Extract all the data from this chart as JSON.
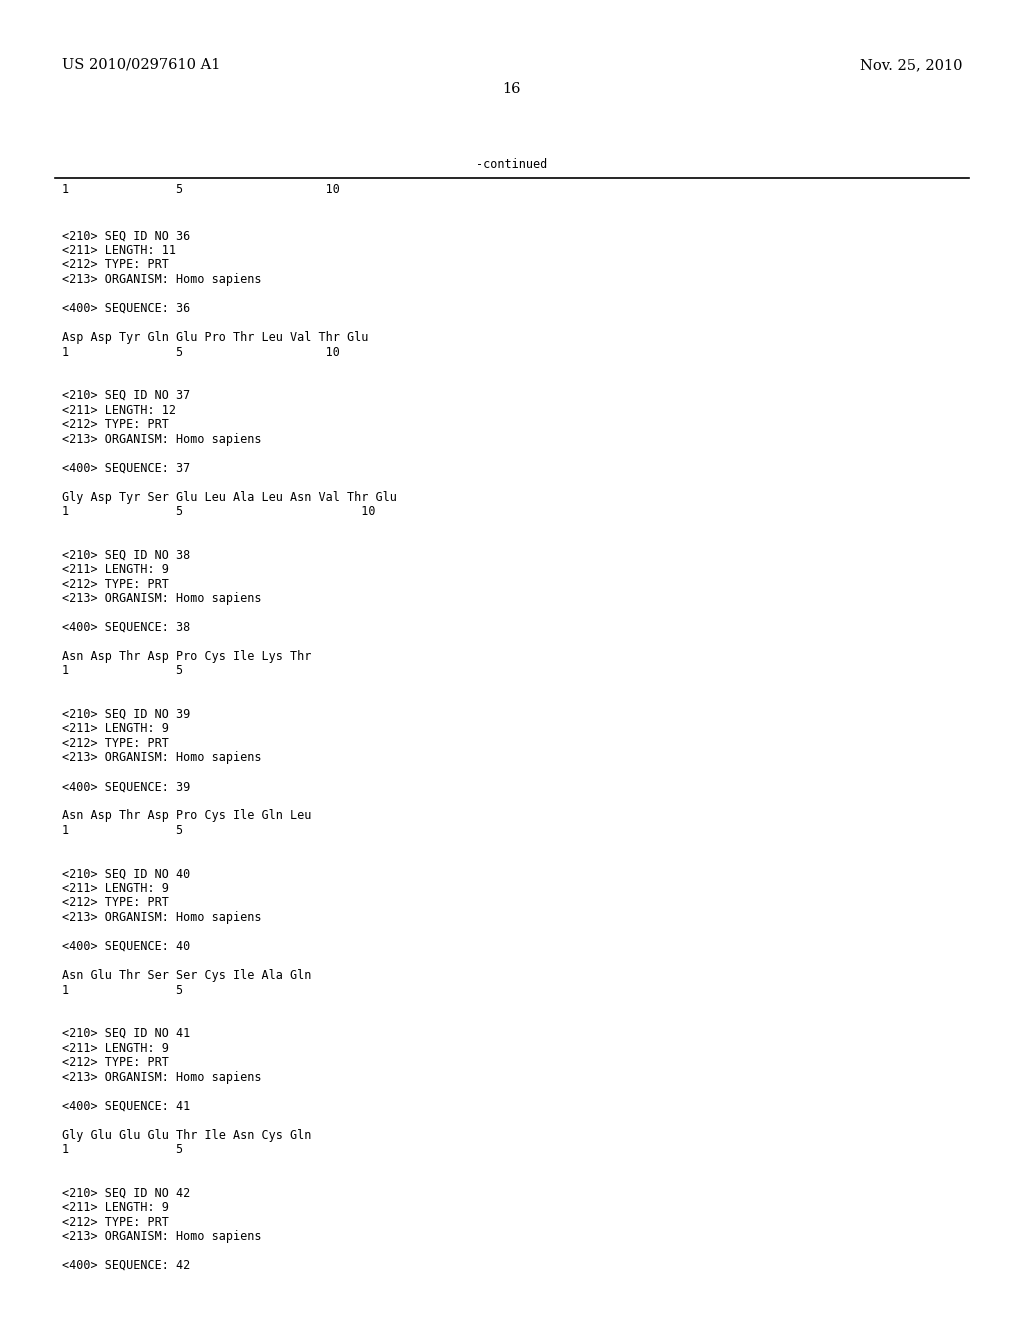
{
  "header_left": "US 2010/0297610 A1",
  "header_right": "Nov. 25, 2010",
  "page_number": "16",
  "continued_label": "-continued",
  "background_color": "#ffffff",
  "text_color": "#000000",
  "font_size_header": 10.5,
  "font_size_body": 8.5,
  "number_line_top": "1               5                    10",
  "content_lines": [
    "",
    "<210> SEQ ID NO 36",
    "<211> LENGTH: 11",
    "<212> TYPE: PRT",
    "<213> ORGANISM: Homo sapiens",
    "",
    "<400> SEQUENCE: 36",
    "",
    "Asp Asp Tyr Gln Glu Pro Thr Leu Val Thr Glu",
    "1               5                    10",
    "",
    "",
    "<210> SEQ ID NO 37",
    "<211> LENGTH: 12",
    "<212> TYPE: PRT",
    "<213> ORGANISM: Homo sapiens",
    "",
    "<400> SEQUENCE: 37",
    "",
    "Gly Asp Tyr Ser Glu Leu Ala Leu Asn Val Thr Glu",
    "1               5                         10",
    "",
    "",
    "<210> SEQ ID NO 38",
    "<211> LENGTH: 9",
    "<212> TYPE: PRT",
    "<213> ORGANISM: Homo sapiens",
    "",
    "<400> SEQUENCE: 38",
    "",
    "Asn Asp Thr Asp Pro Cys Ile Lys Thr",
    "1               5",
    "",
    "",
    "<210> SEQ ID NO 39",
    "<211> LENGTH: 9",
    "<212> TYPE: PRT",
    "<213> ORGANISM: Homo sapiens",
    "",
    "<400> SEQUENCE: 39",
    "",
    "Asn Asp Thr Asp Pro Cys Ile Gln Leu",
    "1               5",
    "",
    "",
    "<210> SEQ ID NO 40",
    "<211> LENGTH: 9",
    "<212> TYPE: PRT",
    "<213> ORGANISM: Homo sapiens",
    "",
    "<400> SEQUENCE: 40",
    "",
    "Asn Glu Thr Ser Ser Cys Ile Ala Gln",
    "1               5",
    "",
    "",
    "<210> SEQ ID NO 41",
    "<211> LENGTH: 9",
    "<212> TYPE: PRT",
    "<213> ORGANISM: Homo sapiens",
    "",
    "<400> SEQUENCE: 41",
    "",
    "Gly Glu Glu Glu Thr Ile Asn Cys Gln",
    "1               5",
    "",
    "",
    "<210> SEQ ID NO 42",
    "<211> LENGTH: 9",
    "<212> TYPE: PRT",
    "<213> ORGANISM: Homo sapiens",
    "",
    "<400> SEQUENCE: 42"
  ]
}
